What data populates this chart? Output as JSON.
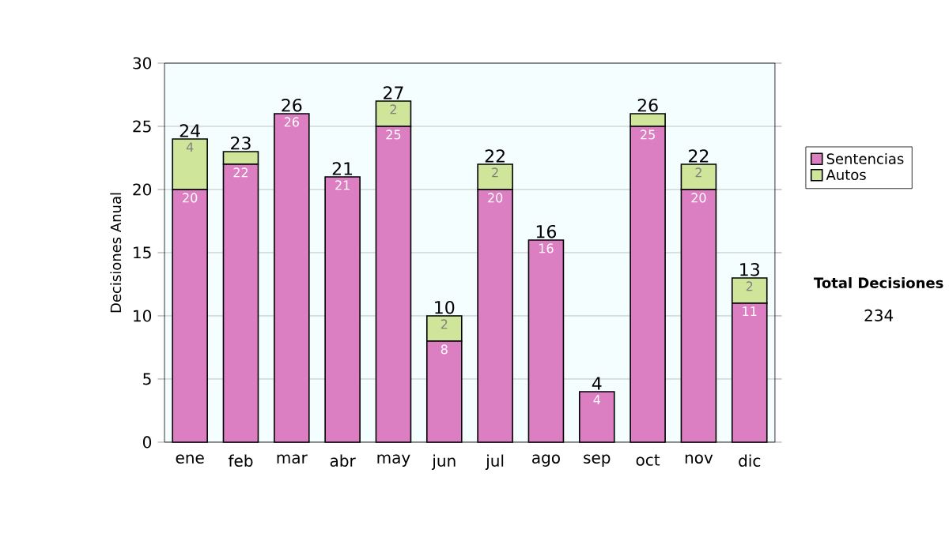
{
  "chart_data": {
    "type": "bar",
    "stacked": true,
    "ylabel": "Decisiones Anual",
    "categories": [
      "ene",
      "feb",
      "mar",
      "abr",
      "may",
      "jun",
      "jul",
      "ago",
      "sep",
      "oct",
      "nov",
      "dic"
    ],
    "series": [
      {
        "name": "Sentencias",
        "color": "#dc7fc2",
        "values": [
          20,
          22,
          26,
          21,
          25,
          8,
          20,
          16,
          4,
          25,
          20,
          11
        ],
        "value_labels": [
          "20",
          "22",
          "26",
          "21",
          "25",
          "8",
          "20",
          "16",
          "4",
          "25",
          "20",
          "11"
        ]
      },
      {
        "name": "Autos",
        "color": "#cfe59a",
        "values": [
          4,
          1,
          0,
          0,
          2,
          2,
          2,
          0,
          0,
          1,
          2,
          2
        ],
        "value_labels": [
          "4",
          null,
          null,
          null,
          "2",
          "2",
          "2",
          null,
          null,
          null,
          "2",
          "2"
        ]
      }
    ],
    "totals": [
      "24",
      "23",
      "26",
      "21",
      "27",
      "10",
      "22",
      "16",
      "4",
      "26",
      "22",
      "13"
    ],
    "ylim": [
      0,
      30
    ],
    "yticks": [
      0,
      5,
      10,
      15,
      20,
      25,
      30
    ],
    "grid": "y",
    "legend": "right",
    "annotations": [
      "Total Decisiones",
      "234"
    ]
  }
}
